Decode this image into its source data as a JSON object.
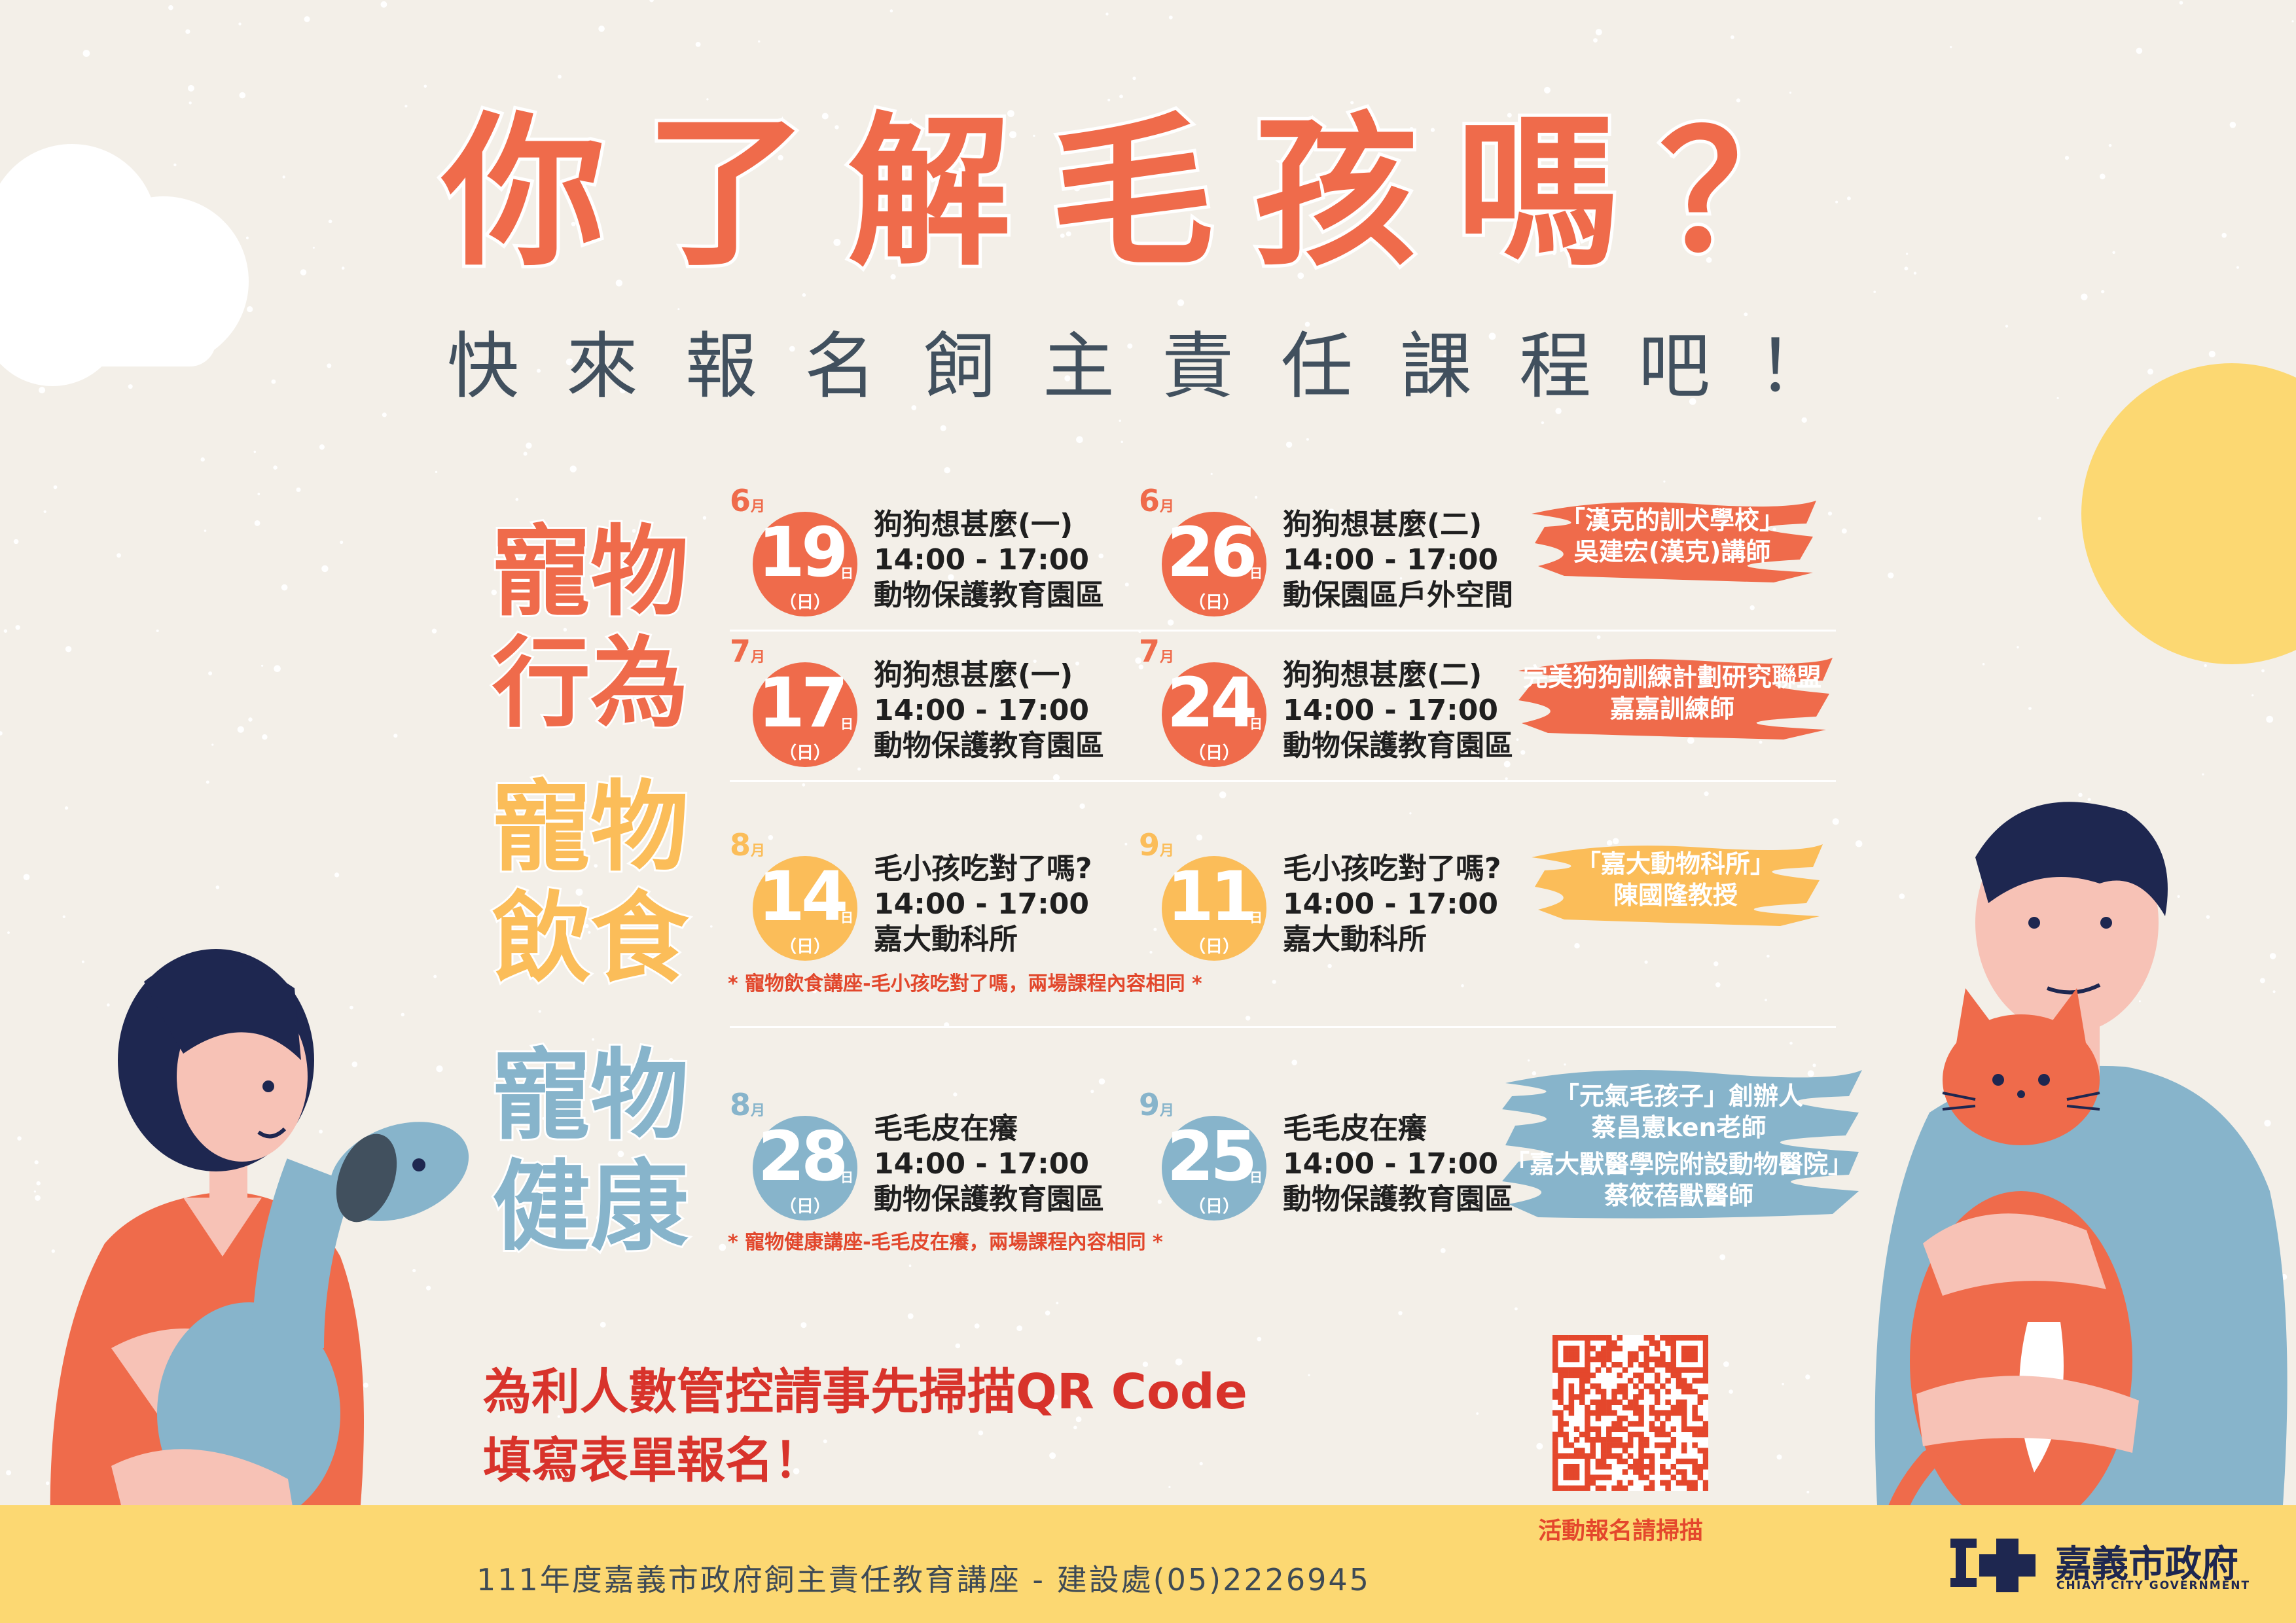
{
  "title": "你了解毛孩嗎？",
  "subtitle": "快來報名飼主責任課程吧！",
  "colors": {
    "background": "#f3efe8",
    "orange": "#ef6b4b",
    "yellow": "#fbbd59",
    "blue": "#87b4cb",
    "navy": "#1e2750",
    "footer": "#fcd872",
    "red_text": "#d8332b"
  },
  "categories": [
    {
      "label_line1": "寵物",
      "label_line2": "行為",
      "color": "#ef6b4b",
      "sessions": [
        {
          "month": "6",
          "day": "19",
          "weekday": "日",
          "title": "狗狗想甚麼(一)",
          "time": "14:00 - 17:00",
          "location": "動物保護教育園區"
        },
        {
          "month": "6",
          "day": "26",
          "weekday": "日",
          "title": "狗狗想甚麼(二)",
          "time": "14:00 - 17:00",
          "location": "動保園區戶外空間"
        },
        {
          "month": "7",
          "day": "17",
          "weekday": "日",
          "title": "狗狗想甚麼(一)",
          "time": "14:00 - 17:00",
          "location": "動物保護教育園區"
        },
        {
          "month": "7",
          "day": "24",
          "weekday": "日",
          "title": "狗狗想甚麼(二)",
          "time": "14:00 - 17:00",
          "location": "動物保護教育園區"
        }
      ],
      "speakers": [
        {
          "line1": "「漢克的訓犬學校」",
          "line2": "吳建宏(漢克)講師"
        },
        {
          "line1": "完美狗狗訓練計劃研究聯盟",
          "line2": "嘉嘉訓練師"
        }
      ]
    },
    {
      "label_line1": "寵物",
      "label_line2": "飲食",
      "color": "#fbbd59",
      "sessions": [
        {
          "month": "8",
          "day": "14",
          "weekday": "日",
          "title": "毛小孩吃對了嗎?",
          "time": "14:00 - 17:00",
          "location": "嘉大動科所"
        },
        {
          "month": "9",
          "day": "11",
          "weekday": "日",
          "title": "毛小孩吃對了嗎?",
          "time": "14:00 - 17:00",
          "location": "嘉大動科所"
        }
      ],
      "speakers": [
        {
          "line1": "「嘉大動物科所」",
          "line2": "陳國隆教授"
        }
      ],
      "note": "* 寵物飲食講座-毛小孩吃對了嗎，兩場課程內容相同 *"
    },
    {
      "label_line1": "寵物",
      "label_line2": "健康",
      "color": "#87b4cb",
      "sessions": [
        {
          "month": "8",
          "day": "28",
          "weekday": "日",
          "title": "毛毛皮在癢",
          "time": "14:00 - 17:00",
          "location": "動物保護教育園區"
        },
        {
          "month": "9",
          "day": "25",
          "weekday": "日",
          "title": "毛毛皮在癢",
          "time": "14:00 - 17:00",
          "location": "動物保護教育園區"
        }
      ],
      "speakers": [
        {
          "line1": "「元氣毛孩子」創辦人",
          "line2": "蔡昌憲ken老師"
        },
        {
          "line1": "「嘉大獸醫學院附設動物醫院」",
          "line2": "蔡筱蓓獸醫師"
        }
      ],
      "note": "* 寵物健康講座-毛毛皮在癢，兩場課程內容相同 *"
    }
  ],
  "month_unit": "月",
  "day_unit": "日",
  "cta_line1": "為利人數管控請事先掃描QR Code",
  "cta_line2": "填寫表單報名！",
  "qr_caption": "活動報名請掃描",
  "footer_text": "111年度嘉義市政府飼主責任教育講座 - 建設處(05)2226945",
  "logo_name": "嘉義市政府",
  "logo_en": "CHIAYI CITY GOVERNMENT"
}
